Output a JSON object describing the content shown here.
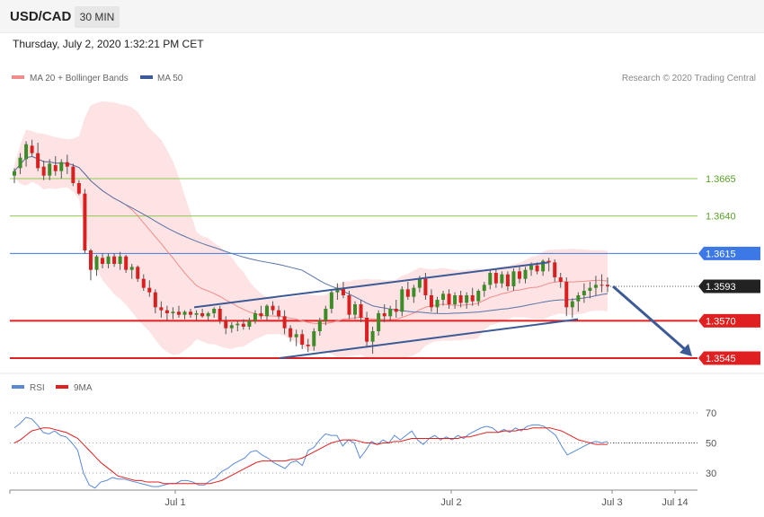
{
  "header": {
    "symbol": "USD/CAD",
    "timeframe": "30 MIN"
  },
  "timestamp": "Thursday, July 2, 2020 1:32:21 PM CET",
  "legend": [
    {
      "name": "MA 20 + Bollinger Bands",
      "color": "#f08c8c"
    },
    {
      "name": "MA 50",
      "color": "#3c5a96"
    }
  ],
  "credit": "Research © 2020 Trading Central",
  "rsi_legend": [
    {
      "name": "RSI",
      "color": "#5a8ad6"
    },
    {
      "name": "9MA",
      "color": "#e02020"
    }
  ],
  "chart_data": [
    {
      "type": "candlestick",
      "title": "USD/CAD 30 MIN",
      "ylim": [
        1.3537,
        1.3709
      ],
      "price_levels": [
        {
          "value": 1.3665,
          "label": "1.3665",
          "color": "#8cc850",
          "kind": "resistance"
        },
        {
          "value": 1.364,
          "label": "1.3640",
          "color": "#8cc850",
          "kind": "resistance"
        },
        {
          "value": 1.3615,
          "label": "1.3615",
          "color": "#3c78e6",
          "kind": "pivot"
        },
        {
          "value": 1.3593,
          "label": "1.3593",
          "color": "#222222",
          "kind": "last"
        },
        {
          "value": 1.357,
          "label": "1.3570",
          "color": "#e02020",
          "kind": "support"
        },
        {
          "value": 1.3545,
          "label": "1.3545",
          "color": "#e02020",
          "kind": "support"
        }
      ],
      "x_labels": [
        "Jul 1",
        "Jul 2",
        "Jul 3",
        "Jul 14"
      ],
      "channel": {
        "upper": [
          1.3579,
          1.3609
        ],
        "lower": [
          1.3545,
          1.3571
        ]
      },
      "candles": [
        {
          "o": 1.3667,
          "h": 1.3672,
          "l": 1.3662,
          "c": 1.367,
          "bull": true
        },
        {
          "o": 1.3672,
          "h": 1.3682,
          "l": 1.3668,
          "c": 1.3679,
          "bull": true
        },
        {
          "o": 1.3678,
          "h": 1.369,
          "l": 1.3673,
          "c": 1.3688,
          "bull": true
        },
        {
          "o": 1.3687,
          "h": 1.3691,
          "l": 1.368,
          "c": 1.3682,
          "bull": false
        },
        {
          "o": 1.3682,
          "h": 1.3689,
          "l": 1.367,
          "c": 1.3672,
          "bull": false
        },
        {
          "o": 1.3673,
          "h": 1.3677,
          "l": 1.3664,
          "c": 1.3667,
          "bull": false
        },
        {
          "o": 1.3667,
          "h": 1.3678,
          "l": 1.3664,
          "c": 1.3675,
          "bull": true
        },
        {
          "o": 1.3674,
          "h": 1.368,
          "l": 1.3667,
          "c": 1.367,
          "bull": false
        },
        {
          "o": 1.367,
          "h": 1.3678,
          "l": 1.3665,
          "c": 1.3676,
          "bull": true
        },
        {
          "o": 1.3676,
          "h": 1.3681,
          "l": 1.3668,
          "c": 1.3673,
          "bull": false
        },
        {
          "o": 1.3673,
          "h": 1.3675,
          "l": 1.366,
          "c": 1.3662,
          "bull": false
        },
        {
          "o": 1.3662,
          "h": 1.3664,
          "l": 1.3654,
          "c": 1.3655,
          "bull": false
        },
        {
          "o": 1.3655,
          "h": 1.3658,
          "l": 1.3615,
          "c": 1.3617,
          "bull": false
        },
        {
          "o": 1.3617,
          "h": 1.3618,
          "l": 1.3597,
          "c": 1.3604,
          "bull": false
        },
        {
          "o": 1.3604,
          "h": 1.3614,
          "l": 1.36,
          "c": 1.3613,
          "bull": true
        },
        {
          "o": 1.3612,
          "h": 1.3615,
          "l": 1.3605,
          "c": 1.3608,
          "bull": false
        },
        {
          "o": 1.3608,
          "h": 1.3615,
          "l": 1.3605,
          "c": 1.3613,
          "bull": true
        },
        {
          "o": 1.3613,
          "h": 1.3615,
          "l": 1.3606,
          "c": 1.3608,
          "bull": false
        },
        {
          "o": 1.3608,
          "h": 1.3616,
          "l": 1.3604,
          "c": 1.3613,
          "bull": true
        },
        {
          "o": 1.3613,
          "h": 1.3614,
          "l": 1.3602,
          "c": 1.3604,
          "bull": false
        },
        {
          "o": 1.3604,
          "h": 1.3608,
          "l": 1.3598,
          "c": 1.3606,
          "bull": true
        },
        {
          "o": 1.3606,
          "h": 1.3607,
          "l": 1.3596,
          "c": 1.3598,
          "bull": false
        },
        {
          "o": 1.3598,
          "h": 1.3601,
          "l": 1.359,
          "c": 1.3592,
          "bull": false
        },
        {
          "o": 1.3592,
          "h": 1.3597,
          "l": 1.3586,
          "c": 1.3589,
          "bull": false
        },
        {
          "o": 1.3589,
          "h": 1.3591,
          "l": 1.3575,
          "c": 1.3579,
          "bull": false
        },
        {
          "o": 1.3579,
          "h": 1.3583,
          "l": 1.3572,
          "c": 1.3577,
          "bull": false
        },
        {
          "o": 1.3577,
          "h": 1.358,
          "l": 1.357,
          "c": 1.3575,
          "bull": false
        },
        {
          "o": 1.3575,
          "h": 1.3579,
          "l": 1.3571,
          "c": 1.3576,
          "bull": true
        },
        {
          "o": 1.3576,
          "h": 1.358,
          "l": 1.3572,
          "c": 1.3574,
          "bull": false
        },
        {
          "o": 1.3574,
          "h": 1.3577,
          "l": 1.3571,
          "c": 1.3576,
          "bull": true
        },
        {
          "o": 1.3576,
          "h": 1.3578,
          "l": 1.3572,
          "c": 1.3574,
          "bull": false
        },
        {
          "o": 1.3574,
          "h": 1.3577,
          "l": 1.357,
          "c": 1.3575,
          "bull": true
        },
        {
          "o": 1.3575,
          "h": 1.3578,
          "l": 1.3572,
          "c": 1.3573,
          "bull": false
        },
        {
          "o": 1.3573,
          "h": 1.3576,
          "l": 1.357,
          "c": 1.3575,
          "bull": true
        },
        {
          "o": 1.3575,
          "h": 1.3579,
          "l": 1.3572,
          "c": 1.3578,
          "bull": true
        },
        {
          "o": 1.3578,
          "h": 1.358,
          "l": 1.3568,
          "c": 1.357,
          "bull": false
        },
        {
          "o": 1.357,
          "h": 1.3573,
          "l": 1.3561,
          "c": 1.3565,
          "bull": false
        },
        {
          "o": 1.3565,
          "h": 1.3569,
          "l": 1.3562,
          "c": 1.3567,
          "bull": true
        },
        {
          "o": 1.3567,
          "h": 1.357,
          "l": 1.3563,
          "c": 1.3568,
          "bull": true
        },
        {
          "o": 1.3568,
          "h": 1.3571,
          "l": 1.3564,
          "c": 1.3566,
          "bull": false
        },
        {
          "o": 1.3566,
          "h": 1.3572,
          "l": 1.3564,
          "c": 1.357,
          "bull": true
        },
        {
          "o": 1.357,
          "h": 1.3577,
          "l": 1.3568,
          "c": 1.3575,
          "bull": true
        },
        {
          "o": 1.3575,
          "h": 1.358,
          "l": 1.3571,
          "c": 1.3573,
          "bull": false
        },
        {
          "o": 1.3573,
          "h": 1.3581,
          "l": 1.357,
          "c": 1.358,
          "bull": true
        },
        {
          "o": 1.358,
          "h": 1.3583,
          "l": 1.3574,
          "c": 1.3577,
          "bull": false
        },
        {
          "o": 1.3577,
          "h": 1.358,
          "l": 1.3571,
          "c": 1.3573,
          "bull": false
        },
        {
          "o": 1.3573,
          "h": 1.3577,
          "l": 1.3561,
          "c": 1.3565,
          "bull": false
        },
        {
          "o": 1.3565,
          "h": 1.3567,
          "l": 1.3556,
          "c": 1.3559,
          "bull": false
        },
        {
          "o": 1.3559,
          "h": 1.3564,
          "l": 1.3553,
          "c": 1.3561,
          "bull": true
        },
        {
          "o": 1.3561,
          "h": 1.3564,
          "l": 1.3551,
          "c": 1.3554,
          "bull": false
        },
        {
          "o": 1.3554,
          "h": 1.3558,
          "l": 1.3549,
          "c": 1.3553,
          "bull": false
        },
        {
          "o": 1.3553,
          "h": 1.3565,
          "l": 1.355,
          "c": 1.3563,
          "bull": true
        },
        {
          "o": 1.3563,
          "h": 1.3572,
          "l": 1.356,
          "c": 1.357,
          "bull": true
        },
        {
          "o": 1.357,
          "h": 1.358,
          "l": 1.3567,
          "c": 1.3578,
          "bull": true
        },
        {
          "o": 1.3578,
          "h": 1.359,
          "l": 1.3575,
          "c": 1.3589,
          "bull": true
        },
        {
          "o": 1.3589,
          "h": 1.3595,
          "l": 1.3584,
          "c": 1.3592,
          "bull": true
        },
        {
          "o": 1.3592,
          "h": 1.3596,
          "l": 1.3585,
          "c": 1.3587,
          "bull": false
        },
        {
          "o": 1.3587,
          "h": 1.359,
          "l": 1.3571,
          "c": 1.3574,
          "bull": false
        },
        {
          "o": 1.3574,
          "h": 1.3583,
          "l": 1.3571,
          "c": 1.3581,
          "bull": true
        },
        {
          "o": 1.3581,
          "h": 1.3584,
          "l": 1.3569,
          "c": 1.3572,
          "bull": false
        },
        {
          "o": 1.3572,
          "h": 1.3576,
          "l": 1.3552,
          "c": 1.3556,
          "bull": false
        },
        {
          "o": 1.3556,
          "h": 1.3566,
          "l": 1.3548,
          "c": 1.3563,
          "bull": true
        },
        {
          "o": 1.3563,
          "h": 1.3577,
          "l": 1.356,
          "c": 1.3575,
          "bull": true
        },
        {
          "o": 1.3575,
          "h": 1.3581,
          "l": 1.3569,
          "c": 1.3573,
          "bull": false
        },
        {
          "o": 1.3573,
          "h": 1.358,
          "l": 1.357,
          "c": 1.3578,
          "bull": true
        },
        {
          "o": 1.3578,
          "h": 1.3584,
          "l": 1.3572,
          "c": 1.3576,
          "bull": false
        },
        {
          "o": 1.3576,
          "h": 1.3593,
          "l": 1.3573,
          "c": 1.3591,
          "bull": true
        },
        {
          "o": 1.3591,
          "h": 1.3596,
          "l": 1.3584,
          "c": 1.3586,
          "bull": false
        },
        {
          "o": 1.3586,
          "h": 1.3594,
          "l": 1.3582,
          "c": 1.3592,
          "bull": true
        },
        {
          "o": 1.3592,
          "h": 1.36,
          "l": 1.3589,
          "c": 1.3598,
          "bull": true
        },
        {
          "o": 1.3598,
          "h": 1.3602,
          "l": 1.3584,
          "c": 1.3587,
          "bull": false
        },
        {
          "o": 1.3587,
          "h": 1.3591,
          "l": 1.3576,
          "c": 1.3579,
          "bull": false
        },
        {
          "o": 1.3579,
          "h": 1.3586,
          "l": 1.3575,
          "c": 1.3584,
          "bull": true
        },
        {
          "o": 1.3584,
          "h": 1.359,
          "l": 1.358,
          "c": 1.3588,
          "bull": true
        },
        {
          "o": 1.3588,
          "h": 1.3591,
          "l": 1.3578,
          "c": 1.3581,
          "bull": false
        },
        {
          "o": 1.3581,
          "h": 1.3589,
          "l": 1.3578,
          "c": 1.3587,
          "bull": true
        },
        {
          "o": 1.3587,
          "h": 1.359,
          "l": 1.3579,
          "c": 1.3582,
          "bull": false
        },
        {
          "o": 1.3582,
          "h": 1.3589,
          "l": 1.3578,
          "c": 1.3587,
          "bull": true
        },
        {
          "o": 1.3587,
          "h": 1.3592,
          "l": 1.358,
          "c": 1.3583,
          "bull": false
        },
        {
          "o": 1.3583,
          "h": 1.3591,
          "l": 1.358,
          "c": 1.359,
          "bull": true
        },
        {
          "o": 1.359,
          "h": 1.3596,
          "l": 1.3586,
          "c": 1.3594,
          "bull": true
        },
        {
          "o": 1.3594,
          "h": 1.3604,
          "l": 1.3591,
          "c": 1.3602,
          "bull": true
        },
        {
          "o": 1.3602,
          "h": 1.3605,
          "l": 1.3592,
          "c": 1.3595,
          "bull": false
        },
        {
          "o": 1.3595,
          "h": 1.3603,
          "l": 1.3592,
          "c": 1.3601,
          "bull": true
        },
        {
          "o": 1.3601,
          "h": 1.3603,
          "l": 1.359,
          "c": 1.3593,
          "bull": false
        },
        {
          "o": 1.3593,
          "h": 1.3605,
          "l": 1.359,
          "c": 1.3603,
          "bull": true
        },
        {
          "o": 1.3603,
          "h": 1.3606,
          "l": 1.3595,
          "c": 1.3598,
          "bull": false
        },
        {
          "o": 1.3598,
          "h": 1.3606,
          "l": 1.3595,
          "c": 1.3604,
          "bull": true
        },
        {
          "o": 1.3604,
          "h": 1.3609,
          "l": 1.36,
          "c": 1.3607,
          "bull": true
        },
        {
          "o": 1.3607,
          "h": 1.3609,
          "l": 1.3601,
          "c": 1.3603,
          "bull": false
        },
        {
          "o": 1.3603,
          "h": 1.3611,
          "l": 1.36,
          "c": 1.361,
          "bull": true
        },
        {
          "o": 1.361,
          "h": 1.3612,
          "l": 1.3603,
          "c": 1.3609,
          "bull": false
        },
        {
          "o": 1.3609,
          "h": 1.3611,
          "l": 1.3596,
          "c": 1.3599,
          "bull": false
        },
        {
          "o": 1.3599,
          "h": 1.3602,
          "l": 1.3592,
          "c": 1.3596,
          "bull": false
        },
        {
          "o": 1.3596,
          "h": 1.3599,
          "l": 1.3573,
          "c": 1.3579,
          "bull": false
        },
        {
          "o": 1.3579,
          "h": 1.3585,
          "l": 1.3572,
          "c": 1.3583,
          "bull": true
        },
        {
          "o": 1.3583,
          "h": 1.3589,
          "l": 1.3576,
          "c": 1.3587,
          "bull": true
        },
        {
          "o": 1.3587,
          "h": 1.3595,
          "l": 1.3582,
          "c": 1.359,
          "bull": true
        },
        {
          "o": 1.359,
          "h": 1.3596,
          "l": 1.3585,
          "c": 1.3592,
          "bull": true
        },
        {
          "o": 1.3592,
          "h": 1.36,
          "l": 1.3587,
          "c": 1.3594,
          "bull": true
        },
        {
          "o": 1.3594,
          "h": 1.3601,
          "l": 1.3589,
          "c": 1.3594,
          "bull": false
        },
        {
          "o": 1.3594,
          "h": 1.3599,
          "l": 1.3589,
          "c": 1.3593,
          "bull": false
        }
      ]
    },
    {
      "type": "line",
      "title": "RSI",
      "ylim": [
        20,
        80
      ],
      "yticks": [
        30,
        50,
        70
      ],
      "series": [
        {
          "name": "RSI",
          "color": "#5a8ad6",
          "values": [
            60,
            63,
            67,
            66,
            62,
            57,
            56,
            58,
            55,
            54,
            50,
            45,
            30,
            22,
            20,
            24,
            25,
            27,
            26,
            26,
            25,
            24,
            23,
            22,
            21,
            21,
            22,
            23,
            23,
            25,
            25,
            24,
            22,
            22,
            25,
            27,
            31,
            33,
            36,
            38,
            40,
            44,
            45,
            42,
            40,
            37,
            35,
            33,
            37,
            38,
            35,
            45,
            47,
            52,
            56,
            55,
            55,
            48,
            52,
            50,
            40,
            45,
            51,
            49,
            52,
            50,
            55,
            52,
            55,
            58,
            52,
            49,
            53,
            55,
            52,
            54,
            52,
            55,
            53,
            56,
            58,
            60,
            61,
            60,
            57,
            59,
            57,
            60,
            58,
            61,
            62,
            62,
            61,
            58,
            55,
            48,
            42,
            44,
            46,
            48,
            50,
            51,
            50,
            51
          ]
        },
        {
          "name": "9MA",
          "color": "#e02020",
          "values": [
            50,
            52,
            55,
            58,
            59,
            60,
            60,
            59,
            58,
            57,
            55,
            53,
            49,
            45,
            41,
            37,
            34,
            31,
            28,
            27,
            26,
            25,
            25,
            24,
            24,
            24,
            23,
            23,
            23,
            23,
            23,
            23,
            23,
            23,
            23,
            24,
            25,
            27,
            29,
            31,
            33,
            35,
            37,
            38,
            38,
            38,
            38,
            38,
            39,
            39,
            40,
            42,
            44,
            46,
            48,
            50,
            51,
            52,
            52,
            52,
            51,
            50,
            50,
            49,
            50,
            50,
            51,
            51,
            52,
            53,
            53,
            53,
            53,
            53,
            53,
            53,
            53,
            53,
            54,
            54,
            55,
            56,
            57,
            57,
            57,
            58,
            58,
            58,
            59,
            59,
            60,
            60,
            60,
            60,
            59,
            58,
            56,
            54,
            52,
            51,
            50,
            49,
            49,
            49
          ]
        }
      ]
    }
  ]
}
